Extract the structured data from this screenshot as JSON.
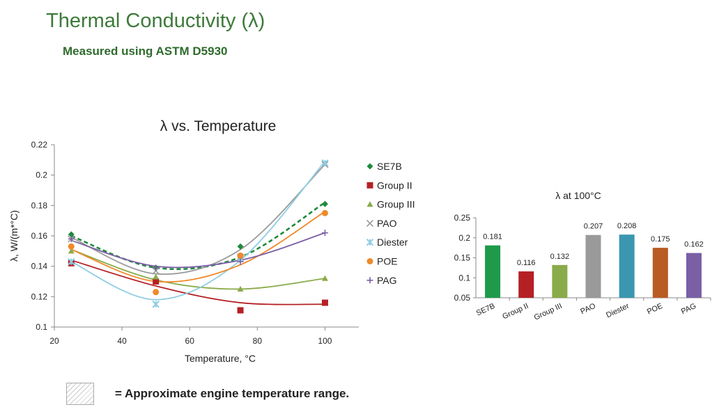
{
  "page": {
    "title": "Thermal Conductivity (λ)",
    "subtitle": "Measured using ASTM D5930",
    "note": "= Approximate engine temperature range."
  },
  "chart_data": [
    {
      "type": "scatter",
      "title": "λ vs. Temperature",
      "xlabel": "Temperature, °C",
      "ylabel": "λ, W/(m*°C)",
      "xlim": [
        20,
        110
      ],
      "ylim": [
        0.1,
        0.22
      ],
      "xticks": [
        20,
        40,
        60,
        80,
        100
      ],
      "yticks": [
        0.1,
        0.12,
        0.14,
        0.16,
        0.18,
        0.2,
        0.22
      ],
      "ytick_labels": [
        "0.1",
        "0.12",
        "0.14",
        "0.16",
        "0.18",
        "0.2",
        "0.22"
      ],
      "grid": false,
      "legend_position": "right",
      "x": [
        25,
        50,
        75,
        100
      ],
      "series": [
        {
          "name": "SE7B",
          "marker": "diamond",
          "color": "#1f8a3c",
          "values": [
            0.161,
            0.139,
            0.153,
            0.181
          ],
          "fit": [
            0.16,
            0.139,
            0.146,
            0.182
          ],
          "dashed": true
        },
        {
          "name": "Group II",
          "marker": "square",
          "color": "#b52025",
          "values": [
            0.142,
            0.13,
            0.111,
            0.116
          ],
          "fit": [
            0.144,
            0.127,
            0.116,
            0.115
          ]
        },
        {
          "name": "Group III",
          "marker": "triangle",
          "color": "#8aab4a",
          "values": [
            0.15,
            0.133,
            0.125,
            0.132
          ],
          "fit": [
            0.151,
            0.131,
            0.125,
            0.132
          ]
        },
        {
          "name": "PAO",
          "marker": "x",
          "color": "#9a9a9a",
          "values": [
            0.158,
            0.137,
            0.146,
            0.207
          ],
          "fit": [
            0.159,
            0.135,
            0.151,
            0.207
          ]
        },
        {
          "name": "Diester",
          "marker": "asterisk",
          "color": "#8fcde3",
          "values": [
            0.143,
            0.115,
            0.145,
            0.208
          ],
          "fit": [
            0.143,
            0.118,
            0.144,
            0.209
          ]
        },
        {
          "name": "POE",
          "marker": "circle",
          "color": "#ef8a2b",
          "values": [
            0.153,
            0.123,
            0.147,
            0.175
          ],
          "fit": [
            0.151,
            0.13,
            0.141,
            0.176
          ]
        },
        {
          "name": "PAG",
          "marker": "plus",
          "color": "#7a5fa5",
          "values": [
            0.158,
            0.139,
            0.143,
            0.162
          ],
          "fit": [
            0.157,
            0.14,
            0.144,
            0.162
          ]
        }
      ]
    },
    {
      "type": "bar",
      "title": "λ at 100°C",
      "categories": [
        "SE7B",
        "Group II",
        "Group III",
        "PAO",
        "Diester",
        "POE",
        "PAG"
      ],
      "values": [
        0.181,
        0.116,
        0.132,
        0.207,
        0.208,
        0.175,
        0.162
      ],
      "value_labels": [
        "0.181",
        "0.116",
        "0.132",
        "0.207",
        "0.208",
        "0.175",
        "0.162"
      ],
      "colors": [
        "#1f9a4a",
        "#b52025",
        "#8aab4a",
        "#9a9a9a",
        "#3b97b0",
        "#b85c24",
        "#7a5fa5"
      ],
      "ylim": [
        0.05,
        0.25
      ],
      "yticks": [
        0.05,
        0.1,
        0.15,
        0.2,
        0.25
      ],
      "ytick_labels": [
        "0.05",
        "0.1",
        "0.15",
        "0.2",
        "0.25"
      ],
      "xlabel": "",
      "ylabel": "",
      "grid": false
    }
  ]
}
